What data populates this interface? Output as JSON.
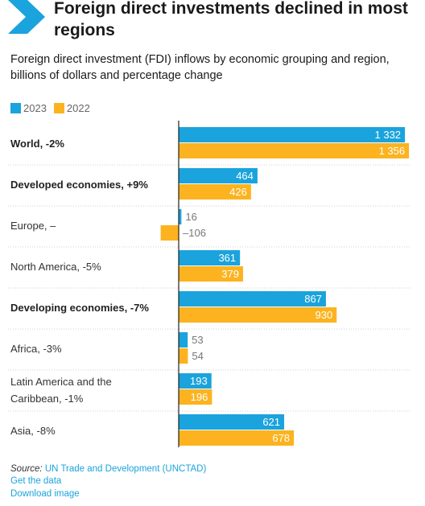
{
  "header": {
    "title": "Foreign direct investments declined in most regions",
    "subtitle": "Foreign direct investment (FDI) inflows by economic grouping and region, billions of dollars and percentage change"
  },
  "colors": {
    "accent": "#1aa3dc",
    "series_2023": "#1aa3dc",
    "series_2022": "#fcb31f"
  },
  "legend": {
    "items": [
      {
        "label": "2023"
      },
      {
        "label": "2022"
      }
    ]
  },
  "chart_data": {
    "type": "bar",
    "orientation": "horizontal",
    "categories": [
      "World, -2%",
      "Developed economies, +9%",
      "Europe, –",
      "North America, -5%",
      "Developing economies, -7%",
      "Africa, -3%",
      "Latin America and the Caribbean, -1%",
      "Asia, -8%"
    ],
    "category_lines": [
      [
        "World, -2%"
      ],
      [
        "Developed economies, +9%"
      ],
      [
        "Europe, –"
      ],
      [
        "North America, -5%"
      ],
      [
        "Developing economies, -7%"
      ],
      [
        "Africa, -3%"
      ],
      [
        "Latin America and the",
        "Caribbean, -1%"
      ],
      [
        "Asia, -8%"
      ]
    ],
    "bold_categories": [
      true,
      true,
      false,
      false,
      true,
      false,
      false,
      false
    ],
    "series": [
      {
        "name": "2023",
        "values": [
          1332,
          464,
          16,
          361,
          867,
          53,
          193,
          621
        ],
        "labels": [
          "1 332",
          "464",
          "16",
          "361",
          "867",
          "53",
          "193",
          "621"
        ]
      },
      {
        "name": "2022",
        "values": [
          1356,
          426,
          -106,
          379,
          930,
          54,
          196,
          678
        ],
        "labels": [
          "1 356",
          "426",
          "–106",
          "379",
          "930",
          "54",
          "196",
          "678"
        ]
      }
    ],
    "xlim": [
      -106,
      1356
    ],
    "grid": false,
    "legend_position": "top-left"
  },
  "source": {
    "prefix": "Source:",
    "text": "UN Trade and Development (UNCTAD)",
    "links": [
      "Get the data",
      "Download image"
    ]
  }
}
